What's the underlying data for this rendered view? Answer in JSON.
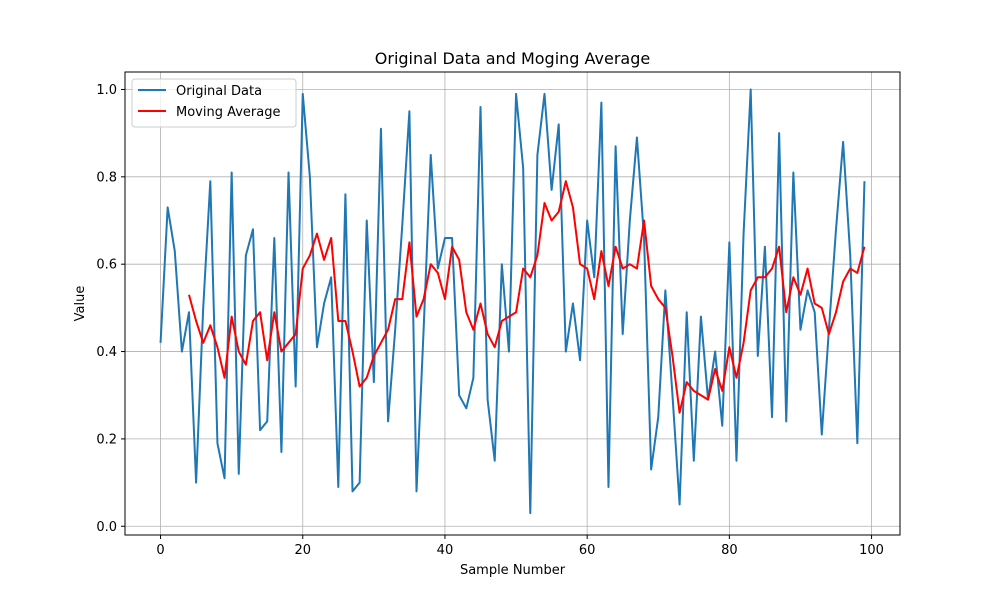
{
  "chart_data": {
    "type": "line",
    "title": "Original Data and Moging Average",
    "xlabel": "Sample Number",
    "ylabel": "Value",
    "xlim": [
      -5,
      104
    ],
    "ylim": [
      -0.02,
      1.04
    ],
    "xticks": [
      0,
      20,
      40,
      60,
      80,
      100
    ],
    "yticks": [
      0.0,
      0.2,
      0.4,
      0.6,
      0.8,
      1.0
    ],
    "xtick_labels": [
      "0",
      "20",
      "40",
      "60",
      "80",
      "100"
    ],
    "ytick_labels": [
      "0.0",
      "0.2",
      "0.4",
      "0.6",
      "0.8",
      "1.0"
    ],
    "grid": true,
    "legend_position": "top-left",
    "series": [
      {
        "name": "Original Data",
        "color": "#1f77b4",
        "x_start": 0,
        "values": [
          0.42,
          0.73,
          0.63,
          0.4,
          0.49,
          0.1,
          0.5,
          0.79,
          0.19,
          0.11,
          0.81,
          0.12,
          0.62,
          0.68,
          0.22,
          0.24,
          0.66,
          0.17,
          0.81,
          0.32,
          0.99,
          0.8,
          0.41,
          0.51,
          0.57,
          0.09,
          0.76,
          0.08,
          0.1,
          0.7,
          0.33,
          0.91,
          0.24,
          0.45,
          0.69,
          0.95,
          0.08,
          0.45,
          0.85,
          0.59,
          0.66,
          0.66,
          0.3,
          0.27,
          0.34,
          0.96,
          0.29,
          0.15,
          0.6,
          0.4,
          0.99,
          0.82,
          0.03,
          0.85,
          0.99,
          0.77,
          0.92,
          0.4,
          0.51,
          0.38,
          0.7,
          0.57,
          0.97,
          0.09,
          0.87,
          0.44,
          0.7,
          0.89,
          0.66,
          0.13,
          0.25,
          0.54,
          0.3,
          0.05,
          0.49,
          0.15,
          0.48,
          0.29,
          0.4,
          0.23,
          0.65,
          0.15,
          0.67,
          1.0,
          0.39,
          0.64,
          0.25,
          0.9,
          0.24,
          0.81,
          0.45,
          0.54,
          0.49,
          0.21,
          0.45,
          0.68,
          0.88,
          0.62,
          0.19,
          0.79
        ]
      },
      {
        "name": "Moving Average",
        "color": "#ff0000",
        "x_start": 4,
        "values": [
          0.53,
          0.47,
          0.42,
          0.46,
          0.41,
          0.34,
          0.48,
          0.4,
          0.37,
          0.47,
          0.49,
          0.38,
          0.49,
          0.4,
          0.42,
          0.44,
          0.59,
          0.62,
          0.67,
          0.61,
          0.66,
          0.47,
          0.47,
          0.4,
          0.32,
          0.34,
          0.39,
          0.42,
          0.45,
          0.52,
          0.52,
          0.65,
          0.48,
          0.52,
          0.6,
          0.58,
          0.52,
          0.64,
          0.61,
          0.49,
          0.45,
          0.51,
          0.44,
          0.41,
          0.47,
          0.48,
          0.49,
          0.59,
          0.57,
          0.62,
          0.74,
          0.7,
          0.72,
          0.79,
          0.73,
          0.6,
          0.59,
          0.52,
          0.63,
          0.55,
          0.64,
          0.59,
          0.6,
          0.59,
          0.7,
          0.55,
          0.52,
          0.5,
          0.39,
          0.26,
          0.33,
          0.31,
          0.3,
          0.29,
          0.36,
          0.31,
          0.41,
          0.34,
          0.42,
          0.54,
          0.57,
          0.57,
          0.59,
          0.64,
          0.49,
          0.57,
          0.53,
          0.59,
          0.51,
          0.5,
          0.44,
          0.49,
          0.56,
          0.59,
          0.58,
          0.64
        ]
      }
    ]
  }
}
